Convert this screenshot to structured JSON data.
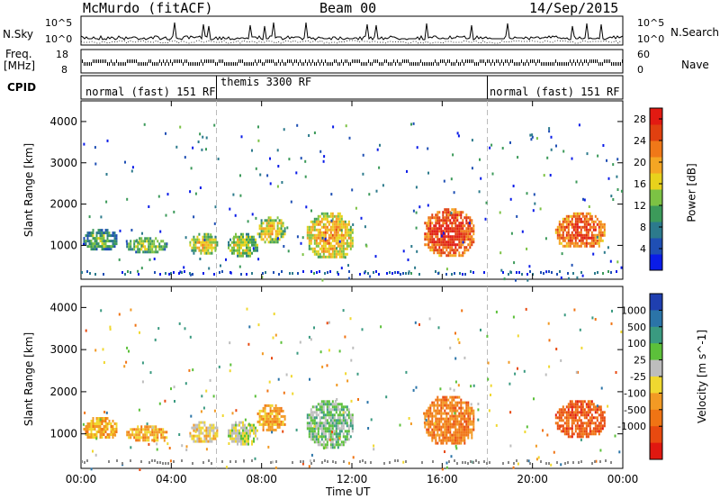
{
  "header": {
    "station": "McMurdo (fitACF)",
    "beam": "Beam 00",
    "date": "14/Sep/2015"
  },
  "left_labels": {
    "nsky": "N.Sky",
    "freq": "Freq.",
    "freq_unit": "[MHz]",
    "cpid": "CPID"
  },
  "right_labels": {
    "nsearch": "N.Search",
    "nave": "Nave"
  },
  "top_panel_ticks": {
    "noise_left": [
      "10^5",
      "10^0"
    ],
    "noise_right": [
      "10^5",
      "10^0"
    ],
    "freq_left": [
      "18",
      "8"
    ],
    "nave_right": [
      "60",
      "0"
    ]
  },
  "cpid_segments": [
    {
      "label": "normal (fast) 151 RF",
      "start_hour": 0,
      "end_hour": 6
    },
    {
      "label": "themis 3300 RF",
      "start_hour": 6,
      "end_hour": 18
    },
    {
      "label": "normal (fast) 151 RF",
      "start_hour": 18,
      "end_hour": 24
    }
  ],
  "chart_data": [
    {
      "type": "heatmap",
      "quantity": "Power",
      "ylabel": "Slant Range [km]",
      "xlabel": "Time UT",
      "xticks": [
        "00:00",
        "04:00",
        "08:00",
        "12:00",
        "16:00",
        "20:00",
        "00:00"
      ],
      "yticks": [
        1000,
        2000,
        3000,
        4000
      ],
      "xlim_hours": [
        0,
        24
      ],
      "ylim_km": [
        180,
        4500
      ],
      "colorbar_label": "Power [dB]",
      "colorbar_ticks": [
        4,
        8,
        12,
        16,
        20,
        24,
        28
      ],
      "colorbar_colors": [
        "#0a1ce8",
        "#1f4fb4",
        "#2c7a8c",
        "#3c9a5a",
        "#7cc244",
        "#e8d21c",
        "#f5a623",
        "#f07818",
        "#e04010",
        "#e21a12"
      ],
      "echo_regions": [
        {
          "start_hour": 0.1,
          "end_hour": 1.6,
          "range_km": [
            900,
            1400
          ],
          "power_db": 8
        },
        {
          "start_hour": 2.0,
          "end_hour": 3.8,
          "range_km": [
            850,
            1200
          ],
          "power_db": 10
        },
        {
          "start_hour": 4.8,
          "end_hour": 6.0,
          "range_km": [
            800,
            1300
          ],
          "power_db": 14
        },
        {
          "start_hour": 6.5,
          "end_hour": 7.8,
          "range_km": [
            750,
            1300
          ],
          "power_db": 12
        },
        {
          "start_hour": 7.8,
          "end_hour": 9.0,
          "range_km": [
            1100,
            1700
          ],
          "power_db": 14
        },
        {
          "start_hour": 10.0,
          "end_hour": 12.0,
          "range_km": [
            700,
            1800
          ],
          "power_db": 16
        },
        {
          "start_hour": 15.2,
          "end_hour": 17.4,
          "range_km": [
            750,
            1900
          ],
          "power_db": 24
        },
        {
          "start_hour": 21.0,
          "end_hour": 23.2,
          "range_km": [
            950,
            1800
          ],
          "power_db": 22
        }
      ]
    },
    {
      "type": "heatmap",
      "quantity": "Velocity",
      "ylabel": "Slant Range [km]",
      "xlabel": "Time UT",
      "xticks": [
        "00:00",
        "04:00",
        "08:00",
        "12:00",
        "16:00",
        "20:00",
        "00:00"
      ],
      "yticks": [
        1000,
        2000,
        3000,
        4000
      ],
      "xlim_hours": [
        0,
        24
      ],
      "ylim_km": [
        180,
        4500
      ],
      "colorbar_label": "Velocity [m s^-1]",
      "colorbar_ticks": [
        "1000",
        "500",
        "100",
        "25",
        "-25",
        "-100",
        "-500",
        "-1000"
      ],
      "colorbar_colors": [
        "#1f3fb0",
        "#2b74a8",
        "#3a9a80",
        "#5cc03a",
        "#bdbdbd",
        "#f0d830",
        "#f29a24",
        "#f07414",
        "#e84a10",
        "#e01810"
      ],
      "echo_regions": [
        {
          "start_hour": 0.1,
          "end_hour": 1.6,
          "range_km": [
            900,
            1400
          ],
          "velocity_ms": -300
        },
        {
          "start_hour": 2.0,
          "end_hour": 3.8,
          "range_km": [
            850,
            1200
          ],
          "velocity_ms": -300
        },
        {
          "start_hour": 4.8,
          "end_hour": 6.0,
          "range_km": [
            800,
            1300
          ],
          "velocity_ms": -100
        },
        {
          "start_hour": 6.5,
          "end_hour": 7.8,
          "range_km": [
            750,
            1300
          ],
          "velocity_ms": 100
        },
        {
          "start_hour": 7.8,
          "end_hour": 9.0,
          "range_km": [
            1100,
            1700
          ],
          "velocity_ms": -300
        },
        {
          "start_hour": 10.0,
          "end_hour": 12.0,
          "range_km": [
            700,
            1800
          ],
          "velocity_ms": 300
        },
        {
          "start_hour": 15.2,
          "end_hour": 17.4,
          "range_km": [
            750,
            1900
          ],
          "velocity_ms": -500
        },
        {
          "start_hour": 21.0,
          "end_hour": 23.2,
          "range_km": [
            950,
            1800
          ],
          "velocity_ms": -700
        }
      ]
    }
  ]
}
